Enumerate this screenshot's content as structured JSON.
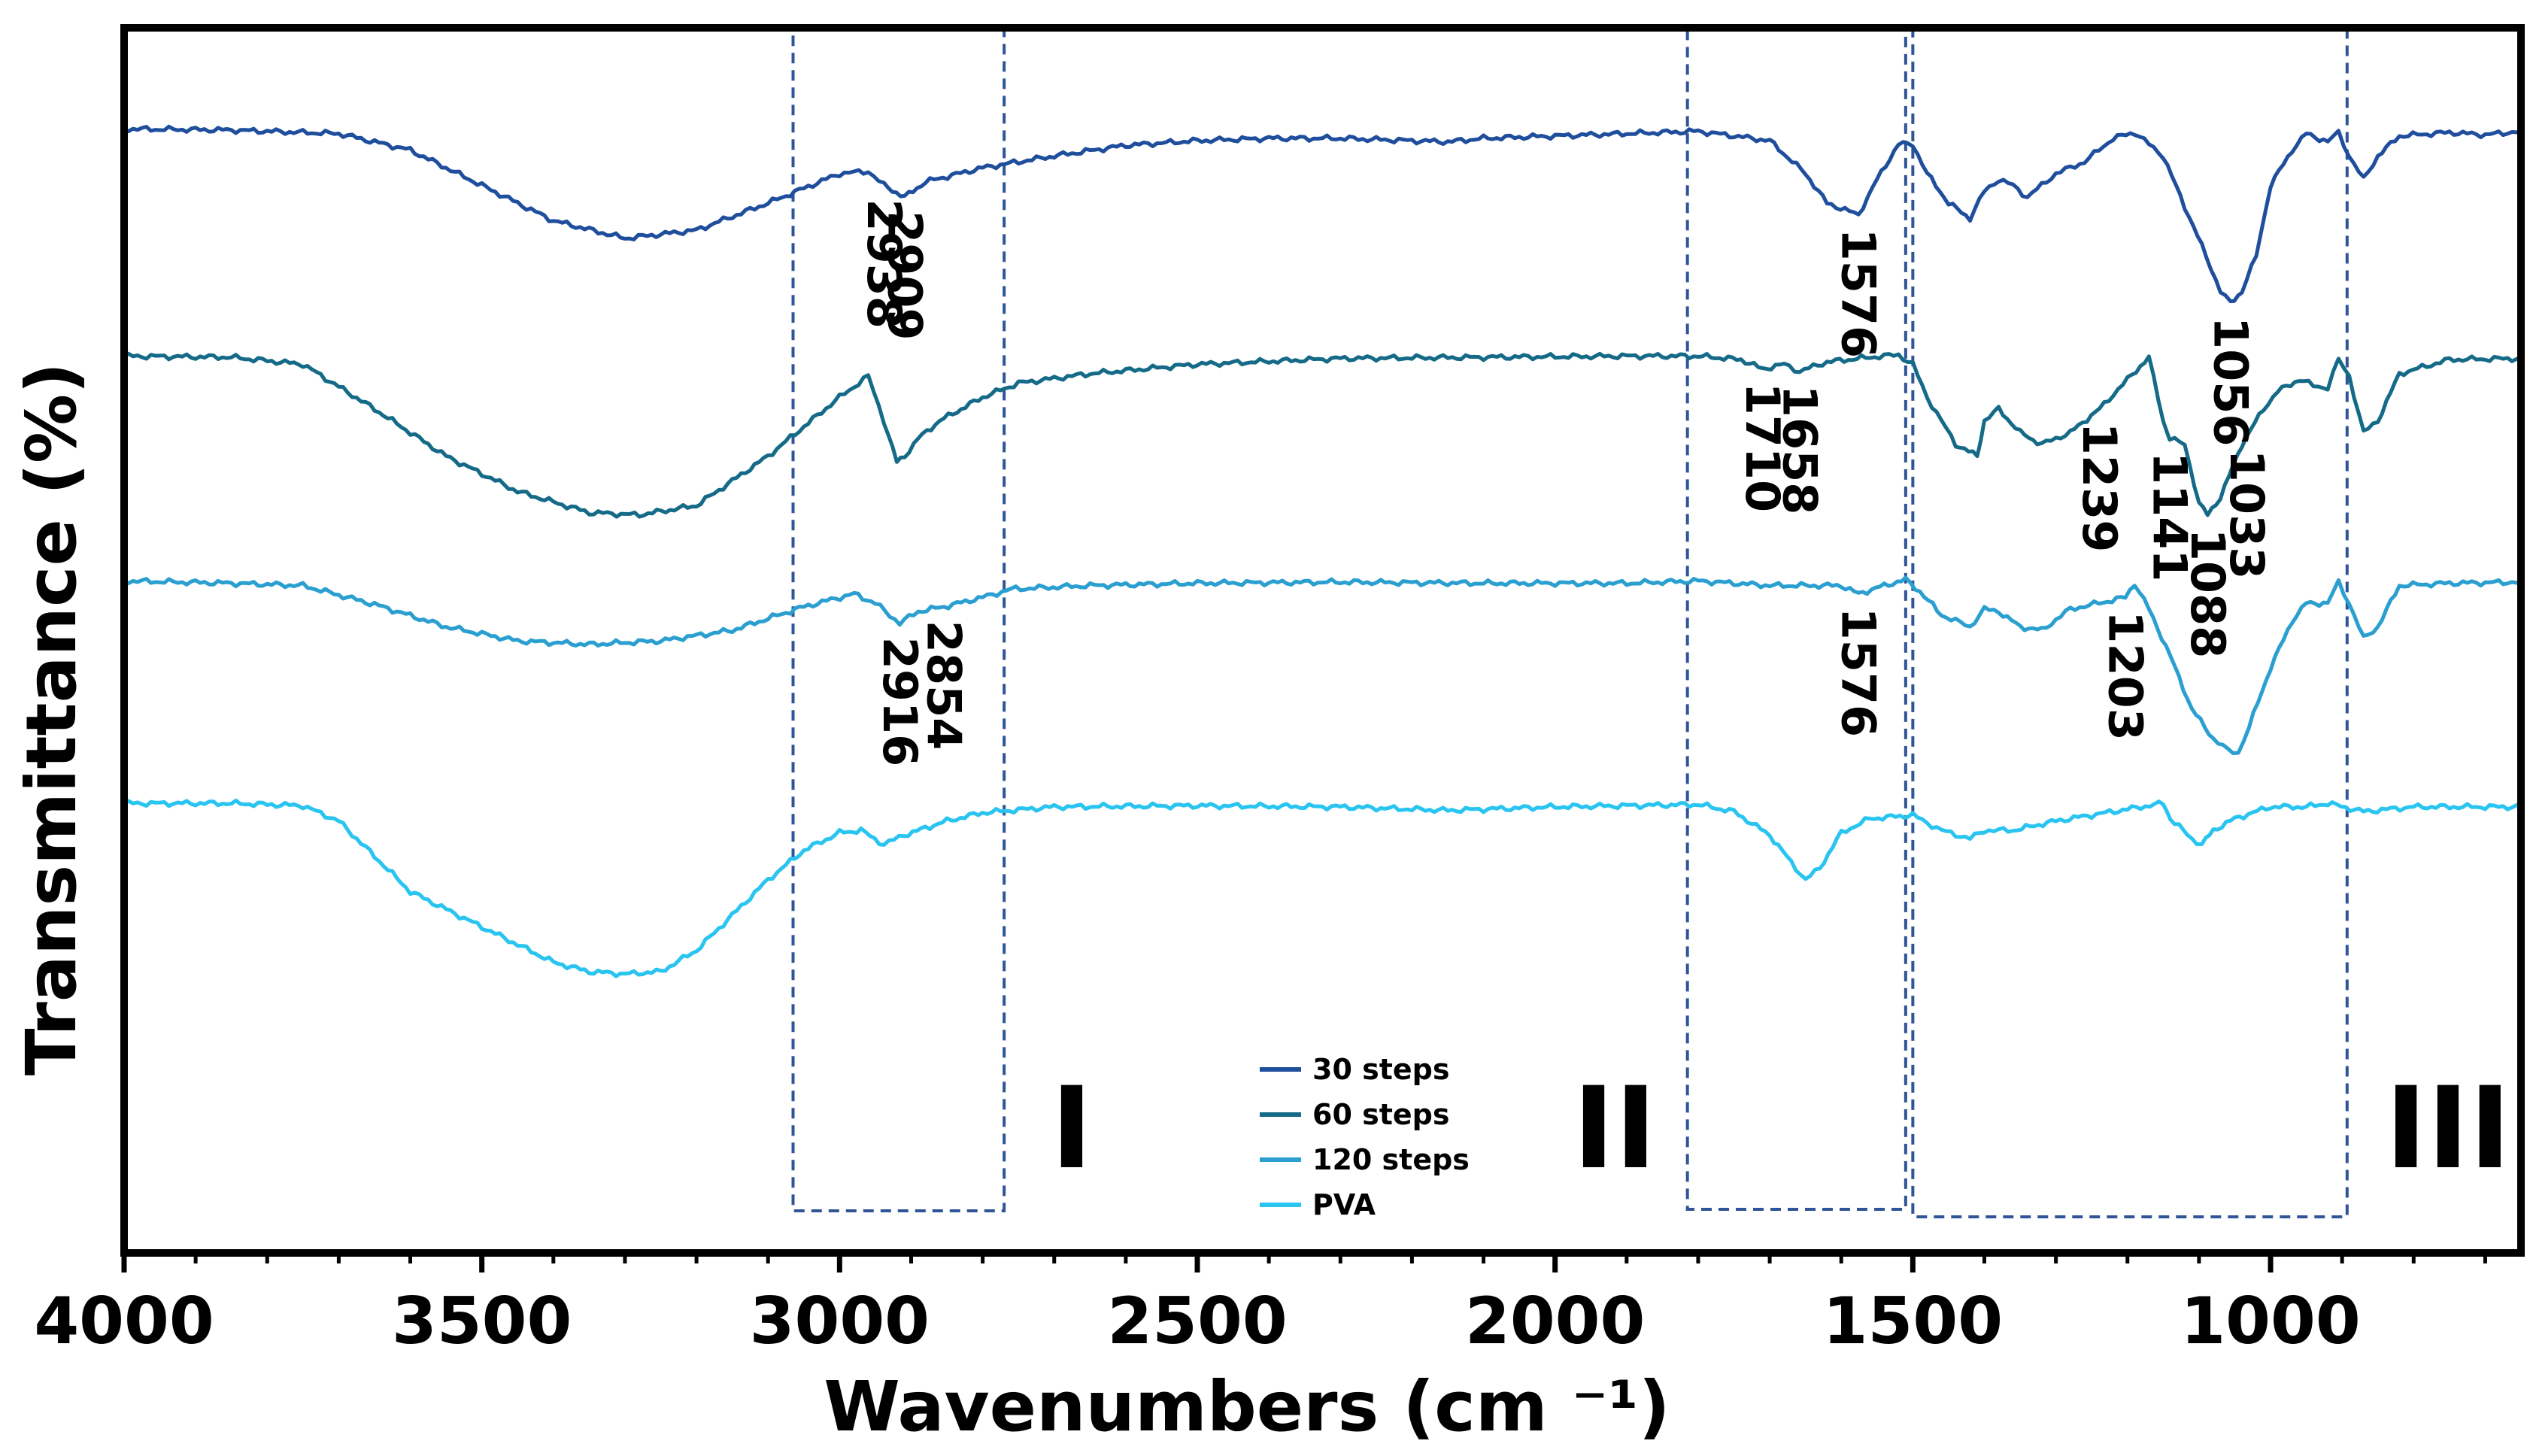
{
  "chart_data": {
    "type": "line",
    "title": "",
    "xlabel": "Wavenumbers (cm ⁻¹)",
    "ylabel": "Transmittance (%)",
    "xlim": [
      4000,
      650
    ],
    "x_reversed": true,
    "x_ticks": [
      4000,
      3500,
      3000,
      2500,
      2000,
      1500,
      1000
    ],
    "y_ticks_shown": false,
    "y_units": "relative transmittance (0 = highest, 1 = lowest on figure)",
    "legend_position": "bottom-center",
    "series": [
      {
        "name": "30 steps",
        "color": "#1f4e9c",
        "points": [
          [
            4000,
            0.052
          ],
          [
            3850,
            0.053
          ],
          [
            3700,
            0.056
          ],
          [
            3600,
            0.07
          ],
          [
            3500,
            0.1
          ],
          [
            3400,
            0.13
          ],
          [
            3300,
            0.145
          ],
          [
            3200,
            0.138
          ],
          [
            3100,
            0.115
          ],
          [
            3000,
            0.09
          ],
          [
            2960,
            0.088
          ],
          [
            2938,
            0.1
          ],
          [
            2909,
            0.11
          ],
          [
            2880,
            0.097
          ],
          [
            2800,
            0.085
          ],
          [
            2700,
            0.075
          ],
          [
            2600,
            0.066
          ],
          [
            2500,
            0.062
          ],
          [
            2400,
            0.06
          ],
          [
            2300,
            0.06
          ],
          [
            2200,
            0.062
          ],
          [
            2150,
            0.063
          ],
          [
            2100,
            0.06
          ],
          [
            2000,
            0.058
          ],
          [
            1900,
            0.056
          ],
          [
            1800,
            0.054
          ],
          [
            1700,
            0.062
          ],
          [
            1650,
            0.09
          ],
          [
            1620,
            0.115
          ],
          [
            1576,
            0.125
          ],
          [
            1550,
            0.095
          ],
          [
            1520,
            0.065
          ],
          [
            1500,
            0.065
          ],
          [
            1480,
            0.09
          ],
          [
            1450,
            0.115
          ],
          [
            1420,
            0.128
          ],
          [
            1400,
            0.105
          ],
          [
            1380,
            0.095
          ],
          [
            1360,
            0.1
          ],
          [
            1340,
            0.11
          ],
          [
            1300,
            0.09
          ],
          [
            1260,
            0.08
          ],
          [
            1220,
            0.06
          ],
          [
            1190,
            0.055
          ],
          [
            1150,
            0.075
          ],
          [
            1120,
            0.118
          ],
          [
            1090,
            0.16
          ],
          [
            1070,
            0.19
          ],
          [
            1056,
            0.2
          ],
          [
            1040,
            0.19
          ],
          [
            1020,
            0.16
          ],
          [
            1000,
            0.1
          ],
          [
            970,
            0.07
          ],
          [
            950,
            0.056
          ],
          [
            920,
            0.063
          ],
          [
            905,
            0.055
          ],
          [
            890,
            0.075
          ],
          [
            870,
            0.095
          ],
          [
            850,
            0.075
          ],
          [
            820,
            0.058
          ],
          [
            750,
            0.055
          ],
          [
            700,
            0.057
          ],
          [
            650,
            0.054
          ]
        ]
      },
      {
        "name": "60 steps",
        "color": "#156a87",
        "points": [
          [
            4000,
            0.245
          ],
          [
            3850,
            0.246
          ],
          [
            3750,
            0.252
          ],
          [
            3650,
            0.29
          ],
          [
            3550,
            0.33
          ],
          [
            3450,
            0.36
          ],
          [
            3350,
            0.378
          ],
          [
            3280,
            0.38
          ],
          [
            3200,
            0.372
          ],
          [
            3100,
            0.33
          ],
          [
            3000,
            0.28
          ],
          [
            2960,
            0.262
          ],
          [
            2938,
            0.3
          ],
          [
            2920,
            0.335
          ],
          [
            2909,
            0.33
          ],
          [
            2890,
            0.315
          ],
          [
            2860,
            0.3
          ],
          [
            2800,
            0.28
          ],
          [
            2750,
            0.268
          ],
          [
            2650,
            0.26
          ],
          [
            2500,
            0.252
          ],
          [
            2300,
            0.247
          ],
          [
            2100,
            0.246
          ],
          [
            1900,
            0.245
          ],
          [
            1800,
            0.245
          ],
          [
            1740,
            0.248
          ],
          [
            1710,
            0.256
          ],
          [
            1680,
            0.252
          ],
          [
            1658,
            0.258
          ],
          [
            1620,
            0.25
          ],
          [
            1560,
            0.246
          ],
          [
            1520,
            0.244
          ],
          [
            1500,
            0.252
          ],
          [
            1480,
            0.28
          ],
          [
            1440,
            0.32
          ],
          [
            1410,
            0.33
          ],
          [
            1400,
            0.3
          ],
          [
            1380,
            0.29
          ],
          [
            1350,
            0.31
          ],
          [
            1320,
            0.32
          ],
          [
            1280,
            0.31
          ],
          [
            1239,
            0.29
          ],
          [
            1200,
            0.265
          ],
          [
            1170,
            0.246
          ],
          [
            1150,
            0.3
          ],
          [
            1141,
            0.315
          ],
          [
            1120,
            0.32
          ],
          [
            1100,
            0.37
          ],
          [
            1088,
            0.38
          ],
          [
            1070,
            0.365
          ],
          [
            1040,
            0.32
          ],
          [
            1010,
            0.29
          ],
          [
            990,
            0.275
          ],
          [
            960,
            0.265
          ],
          [
            940,
            0.27
          ],
          [
            920,
            0.272
          ],
          [
            905,
            0.248
          ],
          [
            890,
            0.262
          ],
          [
            870,
            0.31
          ],
          [
            850,
            0.3
          ],
          [
            820,
            0.26
          ],
          [
            750,
            0.248
          ],
          [
            650,
            0.247
          ]
        ]
      },
      {
        "name": "120 steps",
        "color": "#2a9fd0",
        "points": [
          [
            4000,
            0.436
          ],
          [
            3850,
            0.438
          ],
          [
            3750,
            0.44
          ],
          [
            3650,
            0.456
          ],
          [
            3550,
            0.475
          ],
          [
            3450,
            0.487
          ],
          [
            3350,
            0.49
          ],
          [
            3250,
            0.487
          ],
          [
            3150,
            0.478
          ],
          [
            3050,
            0.458
          ],
          [
            2980,
            0.447
          ],
          [
            2950,
            0.455
          ],
          [
            2916,
            0.472
          ],
          [
            2890,
            0.462
          ],
          [
            2854,
            0.458
          ],
          [
            2800,
            0.45
          ],
          [
            2760,
            0.443
          ],
          [
            2650,
            0.44
          ],
          [
            2500,
            0.438
          ],
          [
            2300,
            0.437
          ],
          [
            2100,
            0.438
          ],
          [
            1900,
            0.438
          ],
          [
            1800,
            0.436
          ],
          [
            1700,
            0.44
          ],
          [
            1600,
            0.44
          ],
          [
            1576,
            0.447
          ],
          [
            1540,
            0.44
          ],
          [
            1510,
            0.435
          ],
          [
            1490,
            0.445
          ],
          [
            1460,
            0.465
          ],
          [
            1420,
            0.475
          ],
          [
            1400,
            0.46
          ],
          [
            1380,
            0.462
          ],
          [
            1350,
            0.475
          ],
          [
            1320,
            0.478
          ],
          [
            1280,
            0.46
          ],
          [
            1240,
            0.455
          ],
          [
            1203,
            0.45
          ],
          [
            1190,
            0.438
          ],
          [
            1170,
            0.46
          ],
          [
            1140,
            0.5
          ],
          [
            1110,
            0.545
          ],
          [
            1080,
            0.57
          ],
          [
            1060,
            0.58
          ],
          [
            1045,
            0.582
          ],
          [
            1030,
            0.56
          ],
          [
            1000,
            0.51
          ],
          [
            970,
            0.47
          ],
          [
            950,
            0.455
          ],
          [
            920,
            0.455
          ],
          [
            905,
            0.437
          ],
          [
            890,
            0.455
          ],
          [
            870,
            0.485
          ],
          [
            850,
            0.475
          ],
          [
            820,
            0.44
          ],
          [
            750,
            0.438
          ],
          [
            650,
            0.437
          ]
        ]
      },
      {
        "name": "PVA",
        "color": "#29c4f0",
        "points": [
          [
            4000,
            0.625
          ],
          [
            3850,
            0.625
          ],
          [
            3750,
            0.627
          ],
          [
            3700,
            0.64
          ],
          [
            3650,
            0.67
          ],
          [
            3600,
            0.7
          ],
          [
            3500,
            0.73
          ],
          [
            3400,
            0.76
          ],
          [
            3350,
            0.768
          ],
          [
            3300,
            0.77
          ],
          [
            3250,
            0.768
          ],
          [
            3200,
            0.75
          ],
          [
            3150,
            0.72
          ],
          [
            3100,
            0.69
          ],
          [
            3050,
            0.665
          ],
          [
            3000,
            0.65
          ],
          [
            2970,
            0.648
          ],
          [
            2938,
            0.66
          ],
          [
            2910,
            0.652
          ],
          [
            2850,
            0.64
          ],
          [
            2800,
            0.633
          ],
          [
            2700,
            0.628
          ],
          [
            2500,
            0.627
          ],
          [
            2300,
            0.628
          ],
          [
            2150,
            0.631
          ],
          [
            2000,
            0.628
          ],
          [
            1800,
            0.626
          ],
          [
            1750,
            0.632
          ],
          [
            1700,
            0.652
          ],
          [
            1670,
            0.675
          ],
          [
            1650,
            0.69
          ],
          [
            1630,
            0.68
          ],
          [
            1600,
            0.65
          ],
          [
            1560,
            0.638
          ],
          [
            1500,
            0.635
          ],
          [
            1460,
            0.648
          ],
          [
            1420,
            0.655
          ],
          [
            1400,
            0.648
          ],
          [
            1360,
            0.648
          ],
          [
            1300,
            0.64
          ],
          [
            1250,
            0.635
          ],
          [
            1200,
            0.63
          ],
          [
            1150,
            0.625
          ],
          [
            1140,
            0.638
          ],
          [
            1110,
            0.655
          ],
          [
            1096,
            0.66
          ],
          [
            1080,
            0.648
          ],
          [
            1050,
            0.638
          ],
          [
            1000,
            0.628
          ],
          [
            950,
            0.628
          ],
          [
            920,
            0.625
          ],
          [
            870,
            0.632
          ],
          [
            800,
            0.628
          ],
          [
            650,
            0.628
          ]
        ]
      }
    ],
    "regions": [
      {
        "label": "I",
        "x_from": 3065,
        "x_to": 2770
      },
      {
        "label": "II",
        "x_from": 1815,
        "x_to": 1510
      },
      {
        "label": "III",
        "x_from": 1500,
        "x_to": 893
      }
    ],
    "annotations": [
      {
        "text": "2938",
        "series": "30 steps",
        "x": 2938
      },
      {
        "text": "2909",
        "series": "30 steps",
        "x": 2909
      },
      {
        "text": "1576",
        "series": "30 steps",
        "x": 1576
      },
      {
        "text": "1056",
        "series": "30 steps",
        "x": 1056
      },
      {
        "text": "1710",
        "series": "60 steps",
        "x": 1710
      },
      {
        "text": "1658",
        "series": "60 steps",
        "x": 1658
      },
      {
        "text": "1239",
        "series": "60 steps",
        "x": 1239
      },
      {
        "text": "1141",
        "series": "60 steps",
        "x": 1141
      },
      {
        "text": "1088",
        "series": "60 steps",
        "x": 1088
      },
      {
        "text": "1033",
        "series": "60 steps",
        "x": 1033
      },
      {
        "text": "2916",
        "series": "120 steps",
        "x": 2916
      },
      {
        "text": "2854",
        "series": "120 steps",
        "x": 2854
      },
      {
        "text": "1576",
        "series": "120 steps",
        "x": 1576
      },
      {
        "text": "1203",
        "series": "120 steps",
        "x": 1203
      }
    ]
  }
}
